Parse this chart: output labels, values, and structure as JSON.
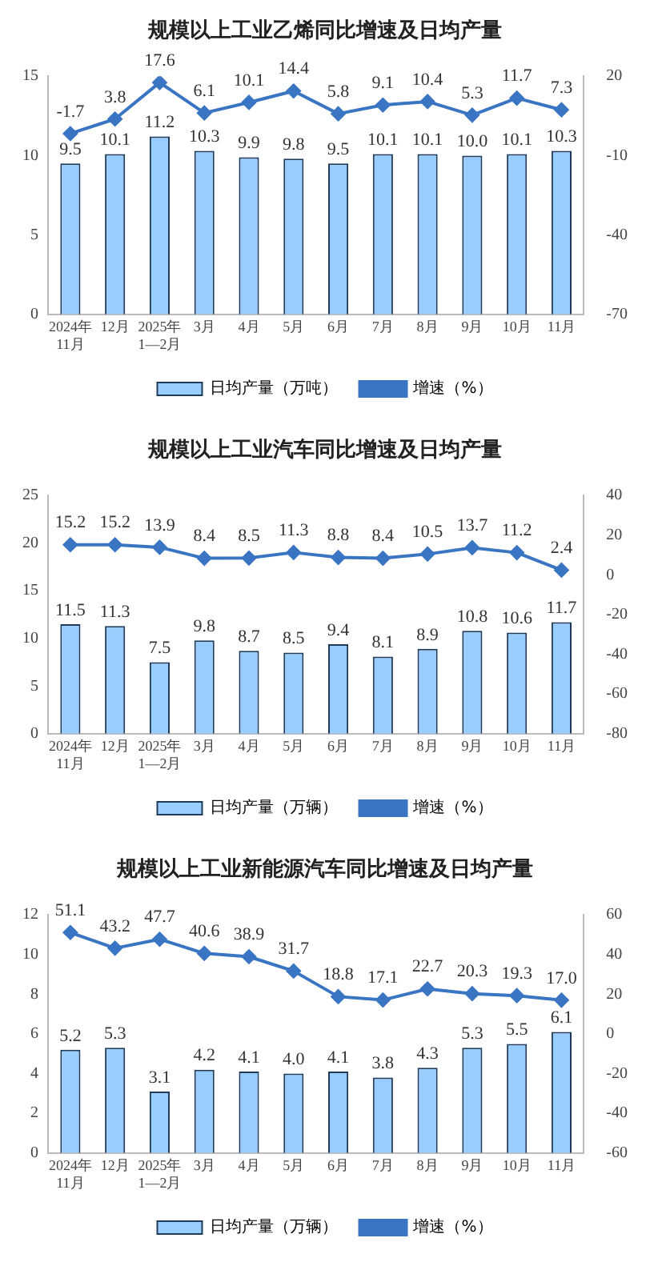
{
  "chart_data": [
    {
      "type": "bar",
      "title": "规模以上工业乙烯同比增速及日均产量",
      "categories": [
        "2024年\n11月",
        "12月",
        "2025年\n1—2月",
        "3月",
        "4月",
        "5月",
        "6月",
        "7月",
        "8月",
        "9月",
        "10月",
        "11月"
      ],
      "series": [
        {
          "name": "日均产量（万吨）",
          "color": "#99ccff",
          "values": [
            9.5,
            10.1,
            11.2,
            10.3,
            9.9,
            9.8,
            9.5,
            10.1,
            10.1,
            10.0,
            10.1,
            10.3
          ],
          "value_labels": [
            "9.5",
            "10.1",
            "11.2",
            "10.3",
            "9.9",
            "9.8",
            "9.5",
            "10.1",
            "10.1",
            "10.0",
            "10.1",
            "10.3"
          ]
        },
        {
          "type": "line",
          "name": "增速（%）",
          "color": "#3a75c4",
          "axis": "y2",
          "values": [
            -1.7,
            3.8,
            17.6,
            6.1,
            10.1,
            14.4,
            5.8,
            9.1,
            10.4,
            5.3,
            11.7,
            7.3
          ],
          "value_labels": [
            "-1.7",
            "3.8",
            "17.6",
            "6.1",
            "10.1",
            "14.4",
            "5.8",
            "9.1",
            "10.4",
            "5.3",
            "11.7",
            "7.3"
          ]
        }
      ],
      "ylim": [
        0,
        15
      ],
      "yticks": [
        0,
        5,
        10,
        15
      ],
      "y2lim": [
        -70,
        20
      ],
      "y2ticks": [
        -70,
        -40,
        -10,
        20
      ],
      "grid": false,
      "legend": "bottom",
      "marker": "diamond"
    },
    {
      "type": "bar",
      "title": "规模以上工业汽车同比增速及日均产量",
      "categories": [
        "2024年\n11月",
        "12月",
        "2025年\n1—2月",
        "3月",
        "4月",
        "5月",
        "6月",
        "7月",
        "8月",
        "9月",
        "10月",
        "11月"
      ],
      "series": [
        {
          "name": "日均产量（万辆）",
          "color": "#99ccff",
          "values": [
            11.5,
            11.3,
            7.5,
            9.8,
            8.7,
            8.5,
            9.4,
            8.1,
            8.9,
            10.8,
            10.6,
            11.7
          ],
          "value_labels": [
            "11.5",
            "11.3",
            "7.5",
            "9.8",
            "8.7",
            "8.5",
            "9.4",
            "8.1",
            "8.9",
            "10.8",
            "10.6",
            "11.7"
          ]
        },
        {
          "type": "line",
          "name": "增速（%）",
          "color": "#3a75c4",
          "axis": "y2",
          "values": [
            15.2,
            15.2,
            13.9,
            8.4,
            8.5,
            11.3,
            8.8,
            8.4,
            10.5,
            13.7,
            11.2,
            2.4
          ],
          "value_labels": [
            "15.2",
            "15.2",
            "13.9",
            "8.4",
            "8.5",
            "11.3",
            "8.8",
            "8.4",
            "10.5",
            "13.7",
            "11.2",
            "2.4"
          ]
        }
      ],
      "ylim": [
        0,
        25
      ],
      "yticks": [
        0,
        5,
        10,
        15,
        20,
        25
      ],
      "y2lim": [
        -80,
        40
      ],
      "y2ticks": [
        -80,
        -60,
        -40,
        -20,
        0,
        20,
        40
      ],
      "grid": false,
      "legend": "bottom",
      "marker": "diamond"
    },
    {
      "type": "bar",
      "title": "规模以上工业新能源汽车同比增速及日均产量",
      "categories": [
        "2024年\n11月",
        "12月",
        "2025年\n1—2月",
        "3月",
        "4月",
        "5月",
        "6月",
        "7月",
        "8月",
        "9月",
        "10月",
        "11月"
      ],
      "series": [
        {
          "name": "日均产量（万辆）",
          "color": "#99ccff",
          "values": [
            5.2,
            5.3,
            3.1,
            4.2,
            4.1,
            4.0,
            4.1,
            3.8,
            4.3,
            5.3,
            5.5,
            6.1
          ],
          "value_labels": [
            "5.2",
            "5.3",
            "3.1",
            "4.2",
            "4.1",
            "4.0",
            "4.1",
            "3.8",
            "4.3",
            "5.3",
            "5.5",
            "6.1"
          ]
        },
        {
          "type": "line",
          "name": "增速（%）",
          "color": "#3a75c4",
          "axis": "y2",
          "values": [
            51.1,
            43.2,
            47.7,
            40.6,
            38.9,
            31.7,
            18.8,
            17.1,
            22.7,
            20.3,
            19.3,
            17.0
          ],
          "value_labels": [
            "51.1",
            "43.2",
            "47.7",
            "40.6",
            "38.9",
            "31.7",
            "18.8",
            "17.1",
            "22.7",
            "20.3",
            "19.3",
            "17.0"
          ]
        }
      ],
      "ylim": [
        0,
        12
      ],
      "yticks": [
        0,
        2,
        4,
        6,
        8,
        10,
        12
      ],
      "y2lim": [
        -60,
        60
      ],
      "y2ticks": [
        -60,
        -40,
        -20,
        0,
        20,
        40,
        60
      ],
      "grid": false,
      "legend": "bottom",
      "marker": "diamond"
    }
  ]
}
